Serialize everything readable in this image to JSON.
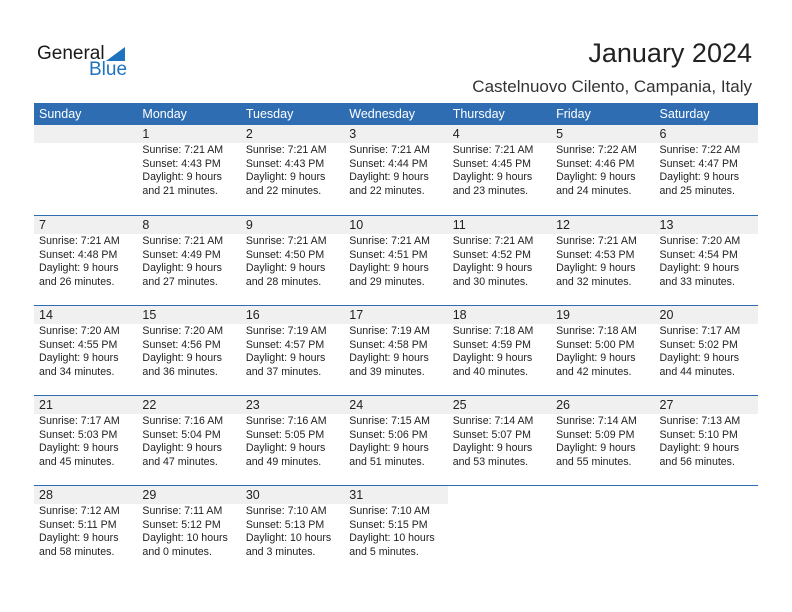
{
  "logo": {
    "line1": "General",
    "line2": "Blue"
  },
  "title": "January 2024",
  "subtitle": "Castelnuovo Cilento, Campania, Italy",
  "days": [
    "Sunday",
    "Monday",
    "Tuesday",
    "Wednesday",
    "Thursday",
    "Friday",
    "Saturday"
  ],
  "weeks": [
    [
      null,
      {
        "day": "1",
        "sunrise": "Sunrise: 7:21 AM",
        "sunset": "Sunset: 4:43 PM",
        "daylight1": "Daylight: 9 hours",
        "daylight2": "and 21 minutes."
      },
      {
        "day": "2",
        "sunrise": "Sunrise: 7:21 AM",
        "sunset": "Sunset: 4:43 PM",
        "daylight1": "Daylight: 9 hours",
        "daylight2": "and 22 minutes."
      },
      {
        "day": "3",
        "sunrise": "Sunrise: 7:21 AM",
        "sunset": "Sunset: 4:44 PM",
        "daylight1": "Daylight: 9 hours",
        "daylight2": "and 22 minutes."
      },
      {
        "day": "4",
        "sunrise": "Sunrise: 7:21 AM",
        "sunset": "Sunset: 4:45 PM",
        "daylight1": "Daylight: 9 hours",
        "daylight2": "and 23 minutes."
      },
      {
        "day": "5",
        "sunrise": "Sunrise: 7:22 AM",
        "sunset": "Sunset: 4:46 PM",
        "daylight1": "Daylight: 9 hours",
        "daylight2": "and 24 minutes."
      },
      {
        "day": "6",
        "sunrise": "Sunrise: 7:22 AM",
        "sunset": "Sunset: 4:47 PM",
        "daylight1": "Daylight: 9 hours",
        "daylight2": "and 25 minutes."
      }
    ],
    [
      {
        "day": "7",
        "sunrise": "Sunrise: 7:21 AM",
        "sunset": "Sunset: 4:48 PM",
        "daylight1": "Daylight: 9 hours",
        "daylight2": "and 26 minutes."
      },
      {
        "day": "8",
        "sunrise": "Sunrise: 7:21 AM",
        "sunset": "Sunset: 4:49 PM",
        "daylight1": "Daylight: 9 hours",
        "daylight2": "and 27 minutes."
      },
      {
        "day": "9",
        "sunrise": "Sunrise: 7:21 AM",
        "sunset": "Sunset: 4:50 PM",
        "daylight1": "Daylight: 9 hours",
        "daylight2": "and 28 minutes."
      },
      {
        "day": "10",
        "sunrise": "Sunrise: 7:21 AM",
        "sunset": "Sunset: 4:51 PM",
        "daylight1": "Daylight: 9 hours",
        "daylight2": "and 29 minutes."
      },
      {
        "day": "11",
        "sunrise": "Sunrise: 7:21 AM",
        "sunset": "Sunset: 4:52 PM",
        "daylight1": "Daylight: 9 hours",
        "daylight2": "and 30 minutes."
      },
      {
        "day": "12",
        "sunrise": "Sunrise: 7:21 AM",
        "sunset": "Sunset: 4:53 PM",
        "daylight1": "Daylight: 9 hours",
        "daylight2": "and 32 minutes."
      },
      {
        "day": "13",
        "sunrise": "Sunrise: 7:20 AM",
        "sunset": "Sunset: 4:54 PM",
        "daylight1": "Daylight: 9 hours",
        "daylight2": "and 33 minutes."
      }
    ],
    [
      {
        "day": "14",
        "sunrise": "Sunrise: 7:20 AM",
        "sunset": "Sunset: 4:55 PM",
        "daylight1": "Daylight: 9 hours",
        "daylight2": "and 34 minutes."
      },
      {
        "day": "15",
        "sunrise": "Sunrise: 7:20 AM",
        "sunset": "Sunset: 4:56 PM",
        "daylight1": "Daylight: 9 hours",
        "daylight2": "and 36 minutes."
      },
      {
        "day": "16",
        "sunrise": "Sunrise: 7:19 AM",
        "sunset": "Sunset: 4:57 PM",
        "daylight1": "Daylight: 9 hours",
        "daylight2": "and 37 minutes."
      },
      {
        "day": "17",
        "sunrise": "Sunrise: 7:19 AM",
        "sunset": "Sunset: 4:58 PM",
        "daylight1": "Daylight: 9 hours",
        "daylight2": "and 39 minutes."
      },
      {
        "day": "18",
        "sunrise": "Sunrise: 7:18 AM",
        "sunset": "Sunset: 4:59 PM",
        "daylight1": "Daylight: 9 hours",
        "daylight2": "and 40 minutes."
      },
      {
        "day": "19",
        "sunrise": "Sunrise: 7:18 AM",
        "sunset": "Sunset: 5:00 PM",
        "daylight1": "Daylight: 9 hours",
        "daylight2": "and 42 minutes."
      },
      {
        "day": "20",
        "sunrise": "Sunrise: 7:17 AM",
        "sunset": "Sunset: 5:02 PM",
        "daylight1": "Daylight: 9 hours",
        "daylight2": "and 44 minutes."
      }
    ],
    [
      {
        "day": "21",
        "sunrise": "Sunrise: 7:17 AM",
        "sunset": "Sunset: 5:03 PM",
        "daylight1": "Daylight: 9 hours",
        "daylight2": "and 45 minutes."
      },
      {
        "day": "22",
        "sunrise": "Sunrise: 7:16 AM",
        "sunset": "Sunset: 5:04 PM",
        "daylight1": "Daylight: 9 hours",
        "daylight2": "and 47 minutes."
      },
      {
        "day": "23",
        "sunrise": "Sunrise: 7:16 AM",
        "sunset": "Sunset: 5:05 PM",
        "daylight1": "Daylight: 9 hours",
        "daylight2": "and 49 minutes."
      },
      {
        "day": "24",
        "sunrise": "Sunrise: 7:15 AM",
        "sunset": "Sunset: 5:06 PM",
        "daylight1": "Daylight: 9 hours",
        "daylight2": "and 51 minutes."
      },
      {
        "day": "25",
        "sunrise": "Sunrise: 7:14 AM",
        "sunset": "Sunset: 5:07 PM",
        "daylight1": "Daylight: 9 hours",
        "daylight2": "and 53 minutes."
      },
      {
        "day": "26",
        "sunrise": "Sunrise: 7:14 AM",
        "sunset": "Sunset: 5:09 PM",
        "daylight1": "Daylight: 9 hours",
        "daylight2": "and 55 minutes."
      },
      {
        "day": "27",
        "sunrise": "Sunrise: 7:13 AM",
        "sunset": "Sunset: 5:10 PM",
        "daylight1": "Daylight: 9 hours",
        "daylight2": "and 56 minutes."
      }
    ],
    [
      {
        "day": "28",
        "sunrise": "Sunrise: 7:12 AM",
        "sunset": "Sunset: 5:11 PM",
        "daylight1": "Daylight: 9 hours",
        "daylight2": "and 58 minutes."
      },
      {
        "day": "29",
        "sunrise": "Sunrise: 7:11 AM",
        "sunset": "Sunset: 5:12 PM",
        "daylight1": "Daylight: 10 hours",
        "daylight2": "and 0 minutes."
      },
      {
        "day": "30",
        "sunrise": "Sunrise: 7:10 AM",
        "sunset": "Sunset: 5:13 PM",
        "daylight1": "Daylight: 10 hours",
        "daylight2": "and 3 minutes."
      },
      {
        "day": "31",
        "sunrise": "Sunrise: 7:10 AM",
        "sunset": "Sunset: 5:15 PM",
        "daylight1": "Daylight: 10 hours",
        "daylight2": "and 5 minutes."
      },
      null,
      null,
      null
    ]
  ]
}
